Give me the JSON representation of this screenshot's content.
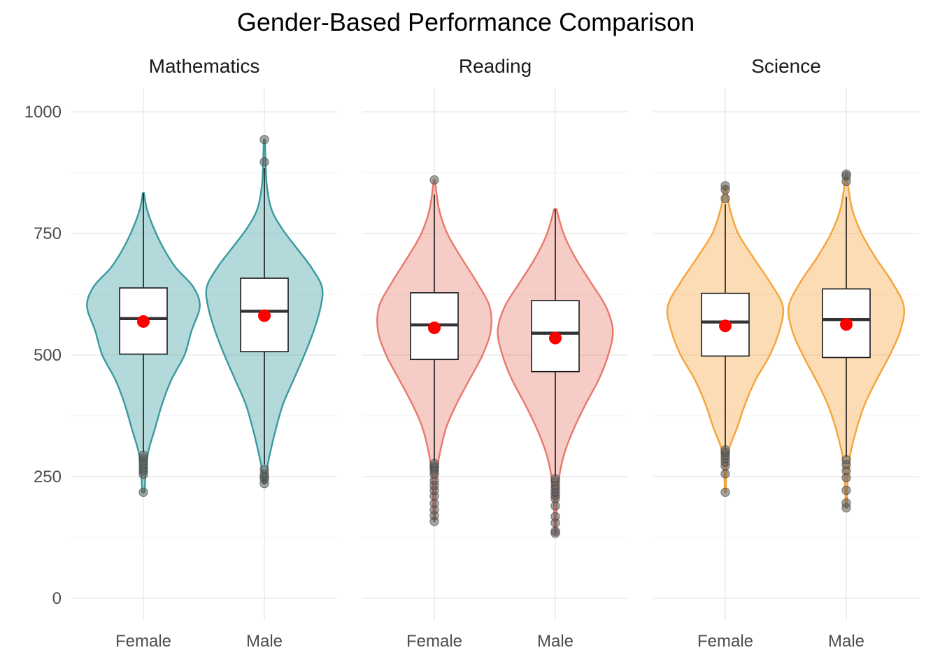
{
  "chart_data": {
    "type": "violin",
    "title": "Gender-Based Performance Comparison",
    "xlabel": "",
    "ylabel": "",
    "ylim": [
      -40,
      1060
    ],
    "y_ticks": [
      0,
      250,
      500,
      750,
      1000
    ],
    "y_tick_labels": [
      "0",
      "250",
      "500",
      "750",
      "1000"
    ],
    "grid": true,
    "legend": "none",
    "categories": [
      "Female",
      "Male"
    ],
    "panels": [
      {
        "name": "Mathematics",
        "color": "#3a9a9e",
        "groups": [
          {
            "category": "Female",
            "min": 218,
            "max": 833,
            "q1": 502,
            "median": 575,
            "q3": 638,
            "mean": 569,
            "whisker_low": 300,
            "whisker_high": 833,
            "outliers": [
              218,
              255,
              262,
              268,
              275,
              282,
              288,
              294
            ],
            "density": [
              [
                218,
                0.02
              ],
              [
                260,
                0.04
              ],
              [
                300,
                0.08
              ],
              [
                350,
                0.2
              ],
              [
                400,
                0.32
              ],
              [
                450,
                0.48
              ],
              [
                500,
                0.7
              ],
              [
                550,
                0.82
              ],
              [
                600,
                0.96
              ],
              [
                640,
                0.85
              ],
              [
                680,
                0.55
              ],
              [
                720,
                0.34
              ],
              [
                760,
                0.18
              ],
              [
                800,
                0.06
              ],
              [
                833,
                0.01
              ]
            ]
          },
          {
            "category": "Male",
            "min": 236,
            "max": 943,
            "q1": 507,
            "median": 590,
            "q3": 658,
            "mean": 581,
            "whisker_low": 275,
            "whisker_high": 885,
            "outliers": [
              236,
              245,
              250,
              255,
              265,
              897,
              943
            ],
            "density": [
              [
                236,
                0.02
              ],
              [
                270,
                0.05
              ],
              [
                300,
                0.1
              ],
              [
                350,
                0.2
              ],
              [
                400,
                0.32
              ],
              [
                450,
                0.5
              ],
              [
                500,
                0.68
              ],
              [
                550,
                0.84
              ],
              [
                600,
                0.96
              ],
              [
                640,
                0.98
              ],
              [
                680,
                0.8
              ],
              [
                720,
                0.55
              ],
              [
                760,
                0.3
              ],
              [
                800,
                0.12
              ],
              [
                850,
                0.04
              ],
              [
                900,
                0.02
              ],
              [
                943,
                0.01
              ]
            ]
          }
        ]
      },
      {
        "name": "Reading",
        "color": "#e8796a",
        "groups": [
          {
            "category": "Female",
            "min": 158,
            "max": 860,
            "q1": 491,
            "median": 562,
            "q3": 628,
            "mean": 556,
            "whisker_low": 282,
            "whisker_high": 830,
            "outliers": [
              158,
              170,
              182,
              195,
              210,
              222,
              232,
              242,
              255,
              262,
              268,
              272,
              277,
              860
            ],
            "density": [
              [
                158,
                0.01
              ],
              [
                200,
                0.02
              ],
              [
                250,
                0.04
              ],
              [
                290,
                0.08
              ],
              [
                350,
                0.2
              ],
              [
                400,
                0.38
              ],
              [
                450,
                0.6
              ],
              [
                500,
                0.82
              ],
              [
                550,
                0.96
              ],
              [
                600,
                0.94
              ],
              [
                650,
                0.72
              ],
              [
                700,
                0.46
              ],
              [
                750,
                0.22
              ],
              [
                800,
                0.08
              ],
              [
                860,
                0.01
              ]
            ]
          },
          {
            "category": "Male",
            "min": 134,
            "max": 800,
            "q1": 466,
            "median": 545,
            "q3": 612,
            "mean": 535,
            "whisker_low": 250,
            "whisker_high": 800,
            "outliers": [
              134,
              138,
              155,
              168,
              190,
              205,
              212,
              218,
              225,
              232,
              240,
              246
            ],
            "density": [
              [
                134,
                0.01
              ],
              [
                180,
                0.02
              ],
              [
                220,
                0.04
              ],
              [
                260,
                0.08
              ],
              [
                300,
                0.16
              ],
              [
                350,
                0.32
              ],
              [
                400,
                0.52
              ],
              [
                450,
                0.74
              ],
              [
                500,
                0.9
              ],
              [
                550,
                0.98
              ],
              [
                600,
                0.86
              ],
              [
                650,
                0.6
              ],
              [
                700,
                0.34
              ],
              [
                750,
                0.14
              ],
              [
                800,
                0.02
              ]
            ]
          }
        ]
      },
      {
        "name": "Science",
        "color": "#f5a43a",
        "groups": [
          {
            "category": "Female",
            "min": 218,
            "max": 848,
            "q1": 498,
            "median": 568,
            "q3": 627,
            "mean": 560,
            "whisker_low": 305,
            "whisker_high": 810,
            "outliers": [
              218,
              256,
              272,
              280,
              287,
              294,
              300,
              305,
              822,
              840,
              848
            ],
            "density": [
              [
                218,
                0.01
              ],
              [
                260,
                0.02
              ],
              [
                305,
                0.06
              ],
              [
                350,
                0.2
              ],
              [
                400,
                0.34
              ],
              [
                450,
                0.52
              ],
              [
                500,
                0.76
              ],
              [
                550,
                0.92
              ],
              [
                600,
                0.98
              ],
              [
                650,
                0.76
              ],
              [
                700,
                0.48
              ],
              [
                750,
                0.22
              ],
              [
                800,
                0.08
              ],
              [
                848,
                0.01
              ]
            ]
          },
          {
            "category": "Male",
            "min": 186,
            "max": 872,
            "q1": 495,
            "median": 573,
            "q3": 636,
            "mean": 563,
            "whisker_low": 290,
            "whisker_high": 825,
            "outliers": [
              186,
              196,
              222,
              248,
              262,
              275,
              285,
              857,
              868,
              872
            ],
            "density": [
              [
                186,
                0.01
              ],
              [
                230,
                0.02
              ],
              [
                290,
                0.06
              ],
              [
                350,
                0.18
              ],
              [
                400,
                0.32
              ],
              [
                450,
                0.52
              ],
              [
                500,
                0.74
              ],
              [
                550,
                0.92
              ],
              [
                600,
                0.98
              ],
              [
                650,
                0.78
              ],
              [
                700,
                0.5
              ],
              [
                750,
                0.26
              ],
              [
                800,
                0.1
              ],
              [
                850,
                0.03
              ],
              [
                872,
                0.01
              ]
            ]
          }
        ]
      }
    ],
    "style": {
      "box_fill": "#ffffff",
      "box_stroke": "#1a1a1a",
      "median_color": "#333333",
      "mean_color": "#ff0000",
      "outlier_color": "#595959"
    }
  }
}
